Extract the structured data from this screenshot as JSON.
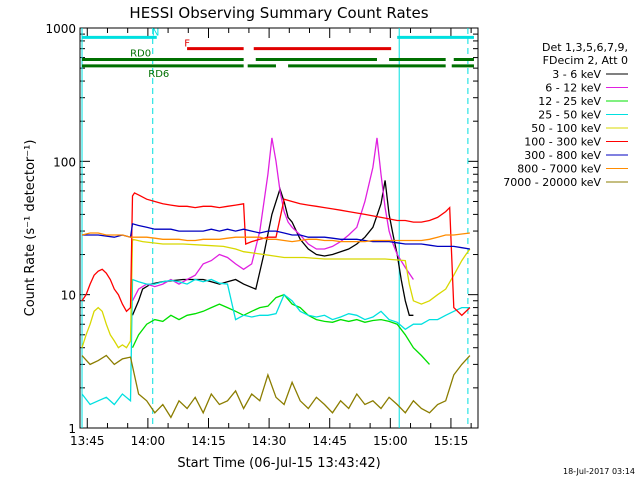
{
  "chart_data": {
    "type": "line",
    "title": "HESSI Observing Summary Count Rates",
    "xlabel": "Start Time (06-Jul-15 13:43:42)",
    "ylabel": "Count Rate (s⁻¹ detector⁻¹)",
    "yscale": "log",
    "ylim": [
      1,
      1000
    ],
    "xlim_minutes": [
      -0.5,
      98
    ],
    "x_ticks": [
      {
        "min": 1.3,
        "label": "13:45"
      },
      {
        "min": 16.3,
        "label": "14:00"
      },
      {
        "min": 31.3,
        "label": "14:15"
      },
      {
        "min": 46.3,
        "label": "14:30"
      },
      {
        "min": 61.3,
        "label": "14:45"
      },
      {
        "min": 76.3,
        "label": "15:00"
      },
      {
        "min": 91.3,
        "label": "15:15"
      }
    ],
    "y_ticks": [
      {
        "value": 1,
        "label": "1"
      },
      {
        "value": 10,
        "label": "10"
      },
      {
        "value": 100,
        "label": "100"
      },
      {
        "value": 1000,
        "label": "1000"
      }
    ],
    "legend_header": [
      "Det 1,3,5,6,7,9,",
      "FDecim 2, Att 0"
    ],
    "legend_placement": "right",
    "footer_date": "18-Jul-2017 03:14",
    "series": [
      {
        "name": "3 - 6 keV",
        "color": "#000000",
        "x": [
          12.5,
          14,
          15,
          17,
          20,
          25,
          30,
          32,
          34,
          36,
          38,
          40,
          43,
          45,
          47,
          49,
          50,
          51,
          52,
          54,
          56,
          58,
          60,
          62,
          64,
          66,
          68,
          70,
          72,
          74,
          75,
          76,
          77,
          78,
          79,
          80,
          81,
          82
        ],
        "y": [
          7,
          9,
          11,
          12,
          12.5,
          13,
          13,
          12.5,
          12,
          12.5,
          13,
          12,
          11,
          20,
          40,
          62,
          50,
          38,
          35,
          26,
          22,
          20,
          19.5,
          20,
          21,
          22,
          24,
          27,
          32,
          48,
          72,
          40,
          28,
          20,
          13,
          9,
          7,
          7
        ]
      },
      {
        "name": "6 - 12 keV",
        "color": "#e020e0",
        "x": [
          12.5,
          14,
          16,
          18,
          20,
          22,
          24,
          26,
          28,
          30,
          32,
          34,
          36,
          38,
          40,
          42,
          44,
          46,
          47,
          48,
          49,
          50,
          51,
          52,
          54,
          56,
          58,
          60,
          62,
          64,
          66,
          68,
          70,
          72,
          73,
          74,
          75,
          76,
          77,
          78,
          80,
          82
        ],
        "y": [
          9,
          11,
          12,
          11.5,
          12,
          13,
          12,
          13,
          14,
          17,
          18,
          20,
          19,
          17,
          15.5,
          17,
          30,
          80,
          150,
          100,
          60,
          42,
          35,
          32,
          28,
          24,
          22,
          22,
          23,
          25,
          28,
          32,
          50,
          90,
          150,
          80,
          45,
          30,
          24,
          20,
          16,
          13
        ]
      },
      {
        "name": "12 - 25 keV",
        "color": "#00e000",
        "x": [
          12.5,
          14,
          16,
          18,
          20,
          22,
          24,
          26,
          28,
          30,
          32,
          34,
          36,
          38,
          40,
          42,
          44,
          46,
          48,
          50,
          52,
          54,
          56,
          58,
          60,
          62,
          64,
          66,
          68,
          70,
          72,
          74,
          76,
          78,
          80,
          82,
          84,
          86
        ],
        "y": [
          4,
          5,
          6,
          6.5,
          6.3,
          7,
          6.5,
          7,
          7.2,
          7.5,
          8,
          8.5,
          8,
          7.5,
          7,
          7.5,
          8,
          8.2,
          9.5,
          10,
          8.5,
          8,
          7,
          6.5,
          6.3,
          6.2,
          6.5,
          6.3,
          6.5,
          6.2,
          6.4,
          6.5,
          6.3,
          6,
          5,
          4,
          3.5,
          3
        ]
      },
      {
        "name": "25 - 50 keV",
        "color": "#00e0e0",
        "x": [
          0,
          2,
          4,
          6,
          8,
          10,
          12,
          12.5,
          14,
          16,
          18,
          20,
          22,
          24,
          26,
          28,
          30,
          32,
          34,
          36,
          38,
          40,
          42,
          44,
          46,
          48,
          50,
          52,
          54,
          56,
          58,
          60,
          62,
          64,
          66,
          68,
          70,
          72,
          74,
          76,
          78,
          80,
          82,
          84,
          86,
          88,
          90,
          92,
          94,
          96
        ],
        "y": [
          1.8,
          1.5,
          1.6,
          1.7,
          1.5,
          1.8,
          1.6,
          13,
          12.5,
          12,
          12,
          12.5,
          12.8,
          12.5,
          12,
          13,
          12.5,
          13,
          12.2,
          12,
          6.5,
          7,
          6.8,
          7,
          7,
          7.2,
          10,
          9,
          7.5,
          7,
          6.8,
          7,
          6.5,
          6.8,
          7.2,
          7,
          6.5,
          6.8,
          7.5,
          6.5,
          6.2,
          5.5,
          6,
          6,
          6.5,
          6.5,
          7,
          7.5,
          8,
          8
        ]
      },
      {
        "name": "50 - 100 keV",
        "color": "#d8d800",
        "x": [
          0,
          1,
          2,
          3,
          4,
          5,
          6,
          7,
          8,
          9,
          10,
          11,
          12,
          12.5,
          15,
          20,
          25,
          30,
          35,
          38,
          40,
          45,
          50,
          55,
          60,
          65,
          70,
          75,
          80,
          81,
          82,
          84,
          86,
          88,
          90,
          92,
          94,
          95,
          96
        ],
        "y": [
          4,
          5,
          6,
          7.5,
          8,
          7.5,
          6,
          5,
          4.5,
          4,
          4.2,
          4,
          4.5,
          26,
          25,
          24,
          24,
          23.5,
          23,
          22,
          21,
          20,
          19,
          19,
          18.5,
          18.5,
          18.5,
          18.5,
          18,
          12,
          9,
          8.5,
          9,
          10,
          11,
          14,
          18,
          20,
          22
        ]
      },
      {
        "name": "100 - 300 keV",
        "color": "#ff0000",
        "x": [
          0,
          1,
          2,
          3,
          4,
          5,
          6,
          7,
          8,
          9,
          10,
          11,
          12,
          12.5,
          13,
          14,
          16,
          18,
          20,
          22,
          24,
          26,
          28,
          30,
          32,
          34,
          36,
          38,
          40,
          40.5,
          42,
          44,
          46,
          48,
          50,
          52,
          54,
          56,
          58,
          60,
          62,
          64,
          66,
          68,
          70,
          72,
          74,
          76,
          78,
          80,
          82,
          84,
          86,
          88,
          90,
          91,
          92,
          94,
          96
        ],
        "y": [
          9,
          10,
          12,
          14,
          15,
          15.5,
          14.5,
          13,
          11,
          10,
          8.5,
          7.5,
          8,
          55,
          58,
          56,
          52,
          50,
          48,
          47,
          46,
          46,
          45,
          46,
          46,
          45,
          46,
          47,
          48,
          24,
          25,
          26,
          27,
          27,
          52,
          50,
          48,
          47,
          46,
          45,
          44,
          43,
          42,
          41,
          40,
          39,
          38,
          37,
          36,
          36,
          35,
          35,
          36,
          38,
          42,
          45,
          8,
          7,
          8
        ]
      },
      {
        "name": "300 - 800 keV",
        "color": "#0000c0",
        "x": [
          0,
          4,
          8,
          10,
          12,
          12.5,
          14,
          16,
          18,
          20,
          22,
          24,
          26,
          28,
          30,
          32,
          34,
          36,
          38,
          40,
          42,
          44,
          46,
          48,
          50,
          52,
          54,
          56,
          58,
          60,
          62,
          64,
          66,
          68,
          70,
          72,
          74,
          76,
          78,
          80,
          82,
          84,
          86,
          88,
          90,
          92,
          94,
          96
        ],
        "y": [
          28,
          28,
          27,
          28,
          27,
          34,
          33,
          32,
          31,
          31,
          31,
          30,
          30,
          30,
          30,
          31,
          30,
          31,
          30,
          31,
          30,
          29,
          30,
          30,
          29,
          28,
          28,
          27,
          27,
          27,
          26.5,
          26,
          26,
          26,
          25.5,
          25,
          25,
          25,
          24.5,
          24,
          24,
          24,
          23.5,
          23,
          23,
          23,
          22.5,
          22
        ]
      },
      {
        "name": "800 - 7000 keV",
        "color": "#ff8c00",
        "x": [
          0,
          2,
          4,
          6,
          8,
          10,
          12,
          14,
          16,
          18,
          20,
          22,
          24,
          26,
          28,
          30,
          32,
          34,
          36,
          38,
          40,
          42,
          44,
          46,
          48,
          50,
          52,
          54,
          56,
          58,
          60,
          62,
          64,
          66,
          68,
          70,
          72,
          74,
          76,
          78,
          80,
          82,
          84,
          86,
          88,
          90,
          92,
          94,
          96
        ],
        "y": [
          28,
          29,
          29,
          28,
          28,
          28,
          27,
          27,
          27,
          26.5,
          26,
          26,
          26,
          25.5,
          25.5,
          26,
          26,
          26,
          26.5,
          27,
          27,
          27,
          27,
          26,
          26,
          25.5,
          25,
          25.5,
          26,
          26,
          25.5,
          25.5,
          25,
          25,
          25,
          25,
          25.5,
          25.5,
          25.5,
          25.5,
          25.5,
          25.5,
          25.5,
          26,
          27,
          28,
          28,
          28.5,
          29
        ]
      },
      {
        "name": "7000 - 20000 keV",
        "color": "#8b7d00",
        "x": [
          0,
          2,
          4,
          6,
          8,
          10,
          12,
          14,
          16,
          18,
          20,
          22,
          24,
          26,
          28,
          30,
          32,
          34,
          36,
          38,
          40,
          42,
          44,
          46,
          48,
          50,
          52,
          54,
          56,
          58,
          60,
          62,
          64,
          66,
          68,
          70,
          72,
          74,
          76,
          78,
          80,
          82,
          84,
          86,
          88,
          90,
          92,
          94,
          96
        ],
        "y": [
          3.5,
          3,
          3.2,
          3.5,
          3,
          3.3,
          3.4,
          1.8,
          1.6,
          1.3,
          1.5,
          1.2,
          1.6,
          1.4,
          1.7,
          1.3,
          1.8,
          1.5,
          1.6,
          1.9,
          1.4,
          1.8,
          1.6,
          2.5,
          1.7,
          1.5,
          2.2,
          1.6,
          1.4,
          1.7,
          1.5,
          1.3,
          1.6,
          1.4,
          1.8,
          1.5,
          1.6,
          1.4,
          1.7,
          1.5,
          1.3,
          1.6,
          1.4,
          1.3,
          1.5,
          1.6,
          2.5,
          3,
          3.5
        ]
      }
    ],
    "flag_bars": [
      {
        "label": "N",
        "color": "#00e0e0",
        "level": 850,
        "segments": [
          [
            0,
            18.5
          ],
          [
            78,
            97
          ]
        ]
      },
      {
        "label": "F",
        "color": "#e00000",
        "level": 700,
        "segments": [
          [
            26,
            40
          ],
          [
            42.5,
            76.5
          ]
        ]
      },
      {
        "label": "RD0",
        "color": "#007000",
        "level": 580,
        "segments": [
          [
            0,
            40
          ],
          [
            43,
            73
          ],
          [
            76,
            90
          ],
          [
            92,
            97
          ]
        ]
      },
      {
        "label": "RD6",
        "color": "#007000",
        "level": 520,
        "segments": [
          [
            0,
            40
          ],
          [
            41,
            48
          ],
          [
            51,
            90
          ],
          [
            91.5,
            97
          ]
        ]
      }
    ],
    "vertical_markers": [
      {
        "x": 0,
        "color": "#00e0e0",
        "style": "solid"
      },
      {
        "x": 17.5,
        "color": "#00e0e0",
        "style": "dashed"
      },
      {
        "x": 78.5,
        "color": "#00e0e0",
        "style": "solid"
      },
      {
        "x": 95.5,
        "color": "#00e0e0",
        "style": "dashed"
      }
    ]
  }
}
